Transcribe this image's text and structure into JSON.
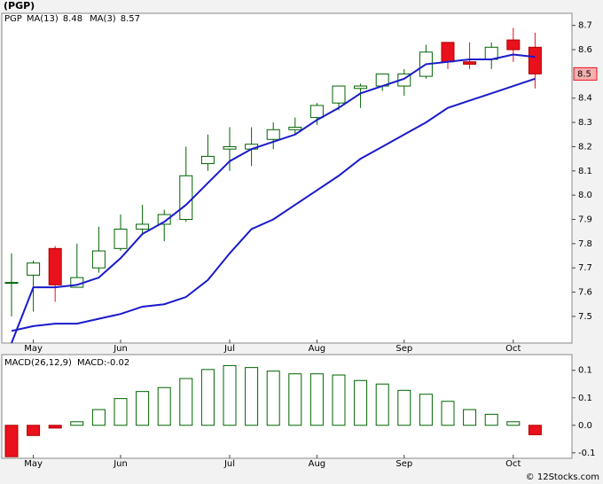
{
  "chart_data": [
    {
      "type": "candlestick",
      "title": "(PGP)",
      "categories": [
        null,
        "May",
        null,
        null,
        null,
        "Jun",
        null,
        null,
        null,
        null,
        "Jul",
        null,
        null,
        null,
        "Aug",
        null,
        null,
        null,
        "Sep",
        null,
        null,
        null,
        null,
        "Oct",
        null
      ],
      "up_color": "#ffffff",
      "down_color": "#e8111c",
      "series": [
        {
          "name": "PGP",
          "color": "#006400",
          "open": [
            7.64,
            7.67,
            7.78,
            7.62,
            7.7,
            7.78,
            7.86,
            7.88,
            7.9,
            8.13,
            8.19,
            8.19,
            8.23,
            8.27,
            8.32,
            8.38,
            8.44,
            8.45,
            8.45,
            8.49,
            8.63,
            8.55,
            8.56,
            8.64,
            8.61
          ],
          "high": [
            7.76,
            7.73,
            7.79,
            7.8,
            7.87,
            7.92,
            7.96,
            7.94,
            8.2,
            8.25,
            8.28,
            8.28,
            8.3,
            8.32,
            8.38,
            8.45,
            8.46,
            8.5,
            8.52,
            8.62,
            8.63,
            8.63,
            8.63,
            8.69,
            8.67
          ],
          "low": [
            7.5,
            7.52,
            7.56,
            7.62,
            7.68,
            7.77,
            7.84,
            7.81,
            7.89,
            8.1,
            8.1,
            8.12,
            8.19,
            8.25,
            8.29,
            8.35,
            8.36,
            8.43,
            8.41,
            8.48,
            8.52,
            8.52,
            8.52,
            8.55,
            8.44
          ],
          "close": [
            7.64,
            7.72,
            7.63,
            7.66,
            7.77,
            7.86,
            7.88,
            7.92,
            8.08,
            8.16,
            8.2,
            8.21,
            8.27,
            8.28,
            8.37,
            8.45,
            8.45,
            8.5,
            8.5,
            8.59,
            8.55,
            8.54,
            8.61,
            8.6,
            8.5
          ]
        },
        {
          "name": "MA(13)",
          "color": "#1a1acc",
          "last_value": 8.48,
          "values": [
            7.44,
            7.46,
            7.47,
            7.47,
            7.49,
            7.51,
            7.54,
            7.55,
            7.58,
            7.65,
            7.76,
            7.86,
            7.9,
            7.96,
            8.02,
            8.08,
            8.15,
            8.2,
            8.25,
            8.3,
            8.36,
            8.39,
            8.42,
            8.45,
            8.48
          ]
        },
        {
          "name": "MA(3)",
          "color": "#1a1acc",
          "last_value": 8.57,
          "values": [
            7.39,
            7.62,
            7.62,
            7.63,
            7.66,
            7.74,
            7.84,
            7.89,
            7.96,
            8.05,
            8.14,
            8.19,
            8.22,
            8.25,
            8.31,
            8.36,
            8.42,
            8.45,
            8.48,
            8.54,
            8.55,
            8.56,
            8.56,
            8.58,
            8.57
          ]
        }
      ],
      "last_price": 8.5,
      "ylim": [
        7.39,
        8.75
      ],
      "yticks": [
        7.5,
        7.6,
        7.7,
        7.8,
        7.9,
        {
          "value": 8,
          "label": "8.0"
        },
        8.1,
        8.2,
        8.3,
        8.4,
        8.6,
        8.7
      ]
    },
    {
      "type": "bar",
      "title": "MACD(26,12,9)",
      "categories": [
        null,
        "May",
        null,
        null,
        null,
        "Jun",
        null,
        null,
        null,
        null,
        "Jul",
        null,
        null,
        null,
        "Aug",
        null,
        null,
        null,
        "Sep",
        null,
        null,
        null,
        null,
        "Oct",
        null
      ],
      "up_color": "#ffffff",
      "down_color": "#e8111c",
      "outline_color": "#006400",
      "series": [
        {
          "name": "MACD:",
          "color": "#1a1acc",
          "last_value": -0.02,
          "values": [
            -0.08,
            -0.026,
            -0.007,
            0.009,
            0.04,
            0.068,
            0.086,
            0.096,
            0.119,
            0.142,
            0.152,
            0.147,
            0.138,
            0.131,
            0.131,
            0.128,
            0.114,
            0.105,
            0.089,
            0.079,
            0.061,
            0.04,
            0.028,
            0.009,
            -0.024
          ]
        }
      ],
      "ylim": [
        -0.084,
        0.18
      ],
      "yticks": [
        {
          "value": 0.14,
          "label": "0.1"
        },
        {
          "value": 0.07,
          "label": "0.1"
        },
        {
          "value": 0,
          "label": "0.0"
        },
        {
          "value": -0.07,
          "label": "-0.1"
        }
      ]
    }
  ],
  "footer": "© 12Stocks.com"
}
